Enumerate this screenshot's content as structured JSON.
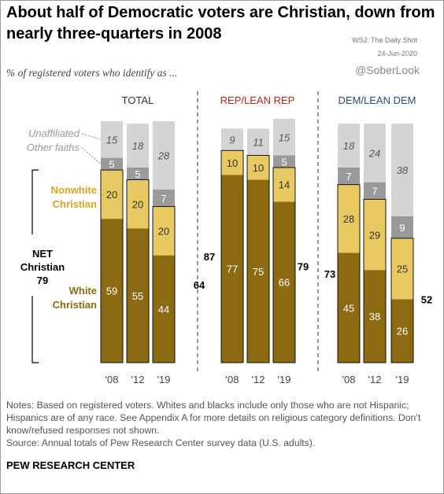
{
  "title": "About half of Democratic voters are Christian, down from nearly three-quarters in 2008",
  "subtitle": "% of registered voters who identify as ...",
  "source_overlay": {
    "publisher": "WSJ: The Daily Shot",
    "date": "24-Jun-2020",
    "handle": "@SoberLook"
  },
  "notes": [
    "Notes: Based on registered voters. Whites and blacks include only those who are not Hispanic; Hispanics are of any race. See Appendix A for more details on religious category definitions. Don’t know/refused responses not shown.",
    "Source: Annual totals of Pew Research Center survey data (U.S. adults)."
  ],
  "footer": "PEW RESEARCH CENTER",
  "colors": {
    "white_christian": "#8b6a12",
    "nonwhite_christian": "#e8c860",
    "other_faiths": "#9a9a9a",
    "unaffiliated": "#d4d4d4",
    "total_header": "#333333",
    "rep_header": "#b5261e",
    "dem_header": "#2b4c70",
    "nonwhite_label": "#d6a722",
    "white_label": "#8b6a12"
  },
  "legend": {
    "unaffiliated": "Unaffiliated",
    "other_faiths": "Other faiths",
    "nonwhite_christian": [
      "Nonwhite",
      "Christian"
    ],
    "white_christian": [
      "White",
      "Christian"
    ],
    "net_christian": [
      "NET",
      "Christian"
    ],
    "net_christian_value": "79"
  },
  "chart_data": {
    "type": "bar",
    "stacked": true,
    "ylim": [
      0,
      100
    ],
    "categories": [
      "'08",
      "'12",
      "'19"
    ],
    "stack_order": [
      "White Christian",
      "Nonwhite Christian",
      "Other faiths",
      "Unaffiliated"
    ],
    "panels": [
      {
        "name": "TOTAL",
        "series": [
          {
            "name": "White Christian",
            "values": [
              59,
              55,
              44
            ]
          },
          {
            "name": "Nonwhite Christian",
            "values": [
              20,
              20,
              20
            ]
          },
          {
            "name": "Other faiths",
            "values": [
              5,
              5,
              7
            ]
          },
          {
            "name": "Unaffiliated",
            "values": [
              15,
              18,
              28
            ]
          }
        ],
        "net_christian": {
          "first": 79,
          "last": 64
        }
      },
      {
        "name": "REP/LEAN REP",
        "series": [
          {
            "name": "White Christian",
            "values": [
              77,
              75,
              66
            ]
          },
          {
            "name": "Nonwhite Christian",
            "values": [
              10,
              10,
              14
            ]
          },
          {
            "name": "Other faiths",
            "values": [
              null,
              null,
              5
            ]
          },
          {
            "name": "Unaffiliated",
            "values": [
              9,
              11,
              15
            ]
          }
        ],
        "net_christian": {
          "first": 87,
          "last": 79
        }
      },
      {
        "name": "DEM/LEAN DEM",
        "series": [
          {
            "name": "White Christian",
            "values": [
              45,
              38,
              26
            ]
          },
          {
            "name": "Nonwhite Christian",
            "values": [
              28,
              29,
              25
            ]
          },
          {
            "name": "Other faiths",
            "values": [
              7,
              7,
              9
            ]
          },
          {
            "name": "Unaffiliated",
            "values": [
              18,
              24,
              38
            ]
          }
        ],
        "net_christian": {
          "first": 73,
          "last": 52
        }
      }
    ]
  }
}
